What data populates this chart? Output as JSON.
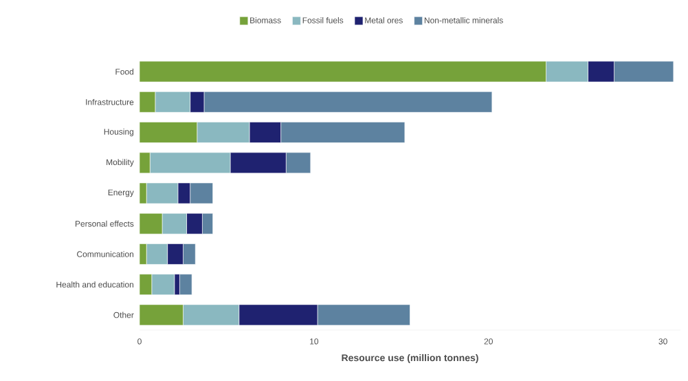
{
  "chart_data": {
    "type": "bar",
    "orientation": "horizontal",
    "stacked": true,
    "xlabel": "Resource use (million tonnes)",
    "categories": [
      "Food",
      "Infrastructure",
      "Housing",
      "Mobility",
      "Energy",
      "Personal effects",
      "Communication",
      "Health and education",
      "Other"
    ],
    "series": [
      {
        "name": "Biomass",
        "color": "#76a23a",
        "values": [
          23.3,
          0.9,
          3.3,
          0.6,
          0.4,
          1.3,
          0.4,
          0.7,
          2.5
        ]
      },
      {
        "name": "Fossil fuels",
        "color": "#8ab8c0",
        "values": [
          2.4,
          2.0,
          3.0,
          4.6,
          1.8,
          1.4,
          1.2,
          1.3,
          3.2
        ]
      },
      {
        "name": "Metal ores",
        "color": "#1f2270",
        "values": [
          1.5,
          0.8,
          1.8,
          3.2,
          0.7,
          0.9,
          0.9,
          0.3,
          4.5
        ]
      },
      {
        "name": "Non-metallic minerals",
        "color": "#5d82a0",
        "values": [
          3.4,
          16.5,
          7.1,
          1.4,
          1.3,
          0.6,
          0.7,
          0.7,
          5.3
        ]
      }
    ],
    "xlim": [
      0,
      31
    ],
    "xticks": [
      0,
      10,
      20,
      30
    ],
    "grid": false,
    "legend": "top"
  }
}
